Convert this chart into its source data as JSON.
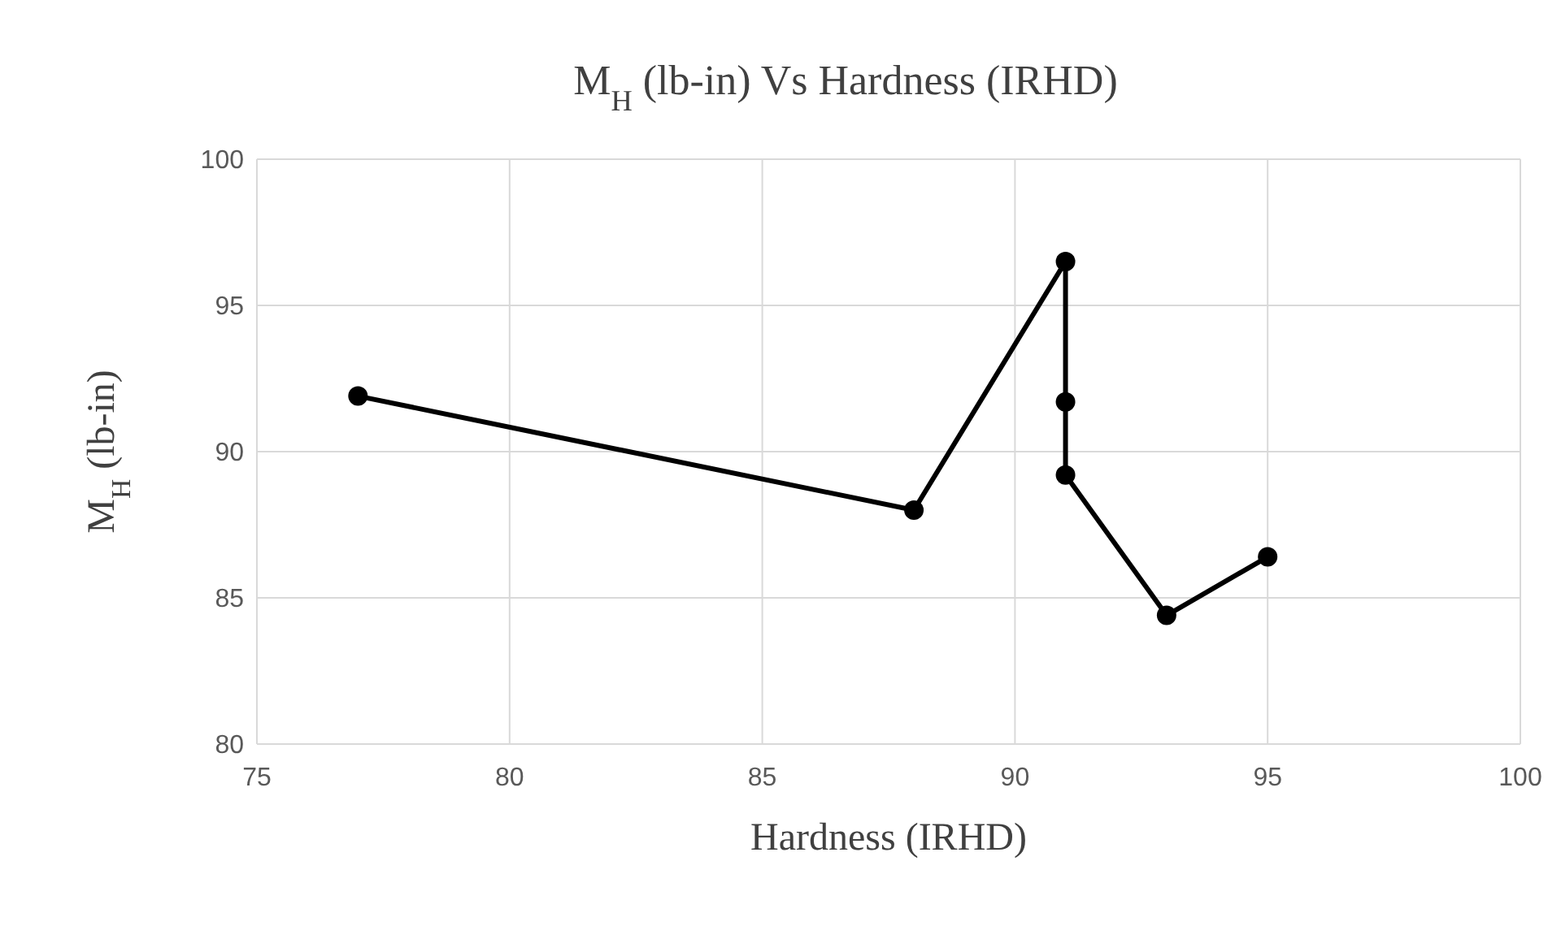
{
  "chart_data": {
    "type": "line",
    "title": "M$_{H}$ (lb-in) Vs Hardness (IRHD)",
    "xlabel": "Hardness (IRHD)",
    "ylabel": "M$_{H}$ (lb-in)",
    "x": [
      77,
      88,
      91,
      91,
      91,
      93,
      95
    ],
    "series": [
      {
        "color": "#000000",
        "values": [
          91.9,
          88.0,
          96.5,
          91.7,
          89.2,
          84.4,
          86.4
        ]
      }
    ],
    "xlim": [
      75,
      100
    ],
    "xticks": [
      75,
      80,
      85,
      90,
      95,
      100
    ],
    "ylim": [
      80,
      100
    ],
    "yticks": [
      80,
      85,
      90,
      95,
      100
    ],
    "grid": true,
    "marker": "circle",
    "line_style": "solid"
  }
}
